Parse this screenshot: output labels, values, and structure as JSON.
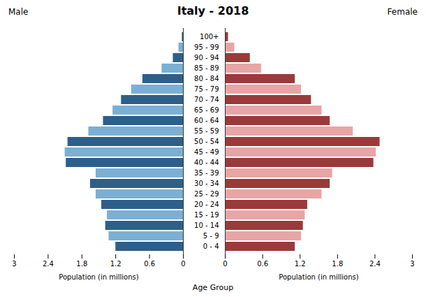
{
  "chart_data": {
    "type": "bar",
    "orientation": "horizontal",
    "title": "Italy - 2018",
    "ylabel": "Age Group",
    "categories": [
      "0 - 4",
      "5 - 9",
      "10 - 14",
      "15 - 19",
      "20 - 24",
      "25 - 29",
      "30 - 34",
      "35 - 39",
      "40 - 44",
      "45 - 49",
      "50 - 54",
      "55 - 59",
      "60 - 64",
      "65 - 69",
      "70 - 74",
      "75 - 79",
      "80 - 84",
      "85 - 89",
      "90 - 94",
      "95 - 99",
      "100+"
    ],
    "series": [
      {
        "name": "Male",
        "xlabel": "Population (in millions)",
        "values": [
          1.2,
          1.32,
          1.38,
          1.35,
          1.45,
          1.55,
          1.65,
          1.55,
          2.08,
          2.1,
          2.05,
          1.68,
          1.42,
          1.25,
          1.1,
          0.92,
          0.72,
          0.38,
          0.18,
          0.08,
          0.02
        ],
        "colors": [
          "#2e5f8a",
          "#7bafd4",
          "#2e5f8a",
          "#7bafd4",
          "#2e5f8a",
          "#7bafd4",
          "#2e5f8a",
          "#7bafd4",
          "#2e5f8a",
          "#7bafd4",
          "#2e5f8a",
          "#7bafd4",
          "#2e5f8a",
          "#7bafd4",
          "#2e5f8a",
          "#7bafd4",
          "#2e5f8a",
          "#7bafd4",
          "#2e5f8a",
          "#7bafd4",
          "#2e5f8a"
        ]
      },
      {
        "name": "Female",
        "xlabel": "Population (in millions)",
        "values": [
          1.12,
          1.22,
          1.25,
          1.28,
          1.32,
          1.55,
          1.68,
          1.72,
          2.38,
          2.42,
          2.48,
          2.05,
          1.68,
          1.55,
          1.38,
          1.22,
          1.12,
          0.58,
          0.4,
          0.15,
          0.05
        ],
        "colors": [
          "#9b3a3a",
          "#e8a5a5",
          "#9b3a3a",
          "#e8a5a5",
          "#9b3a3a",
          "#e8a5a5",
          "#9b3a3a",
          "#e8a5a5",
          "#9b3a3a",
          "#e8a5a5",
          "#9b3a3a",
          "#e8a5a5",
          "#9b3a3a",
          "#e8a5a5",
          "#9b3a3a",
          "#e8a5a5",
          "#9b3a3a",
          "#e8a5a5",
          "#9b3a3a",
          "#e8a5a5",
          "#9b3a3a"
        ]
      }
    ],
    "xlim": [
      0,
      3
    ],
    "xticks": [
      0,
      0.6,
      1.2,
      1.8,
      2.4,
      3
    ]
  }
}
